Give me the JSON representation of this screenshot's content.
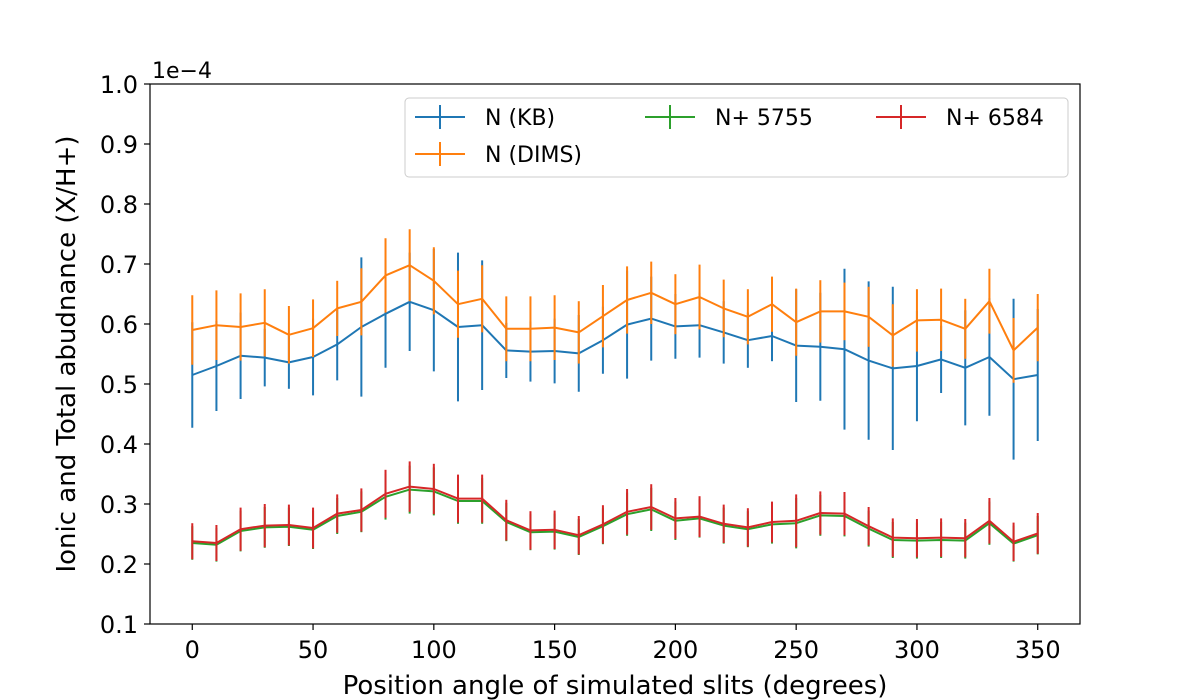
{
  "chart_data": {
    "type": "line",
    "title": "",
    "xlabel": "Position angle of simulated slits (degrees)",
    "ylabel": "Ionic and Total abudnance (X/H+)",
    "y_multiplier_label": "1e−4",
    "xlim": [
      -17.5,
      367.5
    ],
    "ylim": [
      0.1,
      1.0
    ],
    "xticks": [
      0,
      50,
      100,
      150,
      200,
      250,
      300,
      350
    ],
    "xtick_labels": [
      "0",
      "50",
      "100",
      "150",
      "200",
      "250",
      "300",
      "350"
    ],
    "yticks": [
      0.1,
      0.2,
      0.3,
      0.4,
      0.5,
      0.6,
      0.7,
      0.8,
      0.9,
      1.0
    ],
    "ytick_labels": [
      "0.1",
      "0.2",
      "0.3",
      "0.4",
      "0.5",
      "0.6",
      "0.7",
      "0.8",
      "0.9",
      "1.0"
    ],
    "grid": false,
    "legend_position": "top-right",
    "legend_columns": 3,
    "x": [
      0,
      10,
      20,
      30,
      40,
      50,
      60,
      70,
      80,
      90,
      100,
      110,
      120,
      130,
      140,
      150,
      160,
      170,
      180,
      190,
      200,
      210,
      220,
      230,
      240,
      250,
      260,
      270,
      280,
      290,
      300,
      310,
      320,
      330,
      340,
      350
    ],
    "series": [
      {
        "name": "N (KB)",
        "color": "#1f77b4",
        "values": [
          0.515,
          0.53,
          0.547,
          0.544,
          0.536,
          0.545,
          0.566,
          0.595,
          0.617,
          0.637,
          0.623,
          0.595,
          0.598,
          0.556,
          0.554,
          0.555,
          0.551,
          0.573,
          0.599,
          0.609,
          0.596,
          0.598,
          0.586,
          0.573,
          0.58,
          0.564,
          0.562,
          0.558,
          0.539,
          0.526,
          0.53,
          0.541,
          0.527,
          0.545,
          0.508,
          0.515
        ],
        "errors": [
          0.088,
          0.075,
          0.072,
          0.048,
          0.044,
          0.064,
          0.06,
          0.116,
          0.09,
          0.082,
          0.102,
          0.124,
          0.108,
          0.046,
          0.05,
          0.054,
          0.064,
          0.056,
          0.09,
          0.07,
          0.054,
          0.054,
          0.052,
          0.046,
          0.042,
          0.094,
          0.09,
          0.134,
          0.132,
          0.136,
          0.092,
          0.056,
          0.096,
          0.098,
          0.134,
          0.11
        ]
      },
      {
        "name": "N (DIMS)",
        "color": "#ff7f0e",
        "values": [
          0.59,
          0.598,
          0.595,
          0.602,
          0.582,
          0.593,
          0.626,
          0.637,
          0.681,
          0.698,
          0.672,
          0.633,
          0.642,
          0.592,
          0.592,
          0.594,
          0.586,
          0.613,
          0.64,
          0.652,
          0.633,
          0.645,
          0.626,
          0.612,
          0.633,
          0.603,
          0.621,
          0.621,
          0.612,
          0.581,
          0.606,
          0.607,
          0.592,
          0.638,
          0.556,
          0.594
        ],
        "errors": [
          0.058,
          0.058,
          0.056,
          0.056,
          0.048,
          0.048,
          0.046,
          0.056,
          0.062,
          0.06,
          0.056,
          0.056,
          0.056,
          0.054,
          0.054,
          0.054,
          0.052,
          0.052,
          0.056,
          0.052,
          0.05,
          0.054,
          0.048,
          0.046,
          0.046,
          0.056,
          0.052,
          0.048,
          0.05,
          0.052,
          0.052,
          0.052,
          0.05,
          0.054,
          0.054,
          0.056
        ]
      },
      {
        "name": "N+ 5755",
        "color": "#2ca02c",
        "values": [
          0.235,
          0.232,
          0.255,
          0.261,
          0.262,
          0.257,
          0.28,
          0.287,
          0.312,
          0.324,
          0.321,
          0.305,
          0.305,
          0.27,
          0.253,
          0.254,
          0.245,
          0.263,
          0.283,
          0.291,
          0.272,
          0.276,
          0.264,
          0.258,
          0.266,
          0.268,
          0.281,
          0.28,
          0.259,
          0.24,
          0.239,
          0.24,
          0.239,
          0.268,
          0.234,
          0.248
        ],
        "errors": [
          0.028,
          0.028,
          0.034,
          0.034,
          0.032,
          0.032,
          0.03,
          0.034,
          0.038,
          0.04,
          0.04,
          0.038,
          0.038,
          0.032,
          0.03,
          0.03,
          0.03,
          0.03,
          0.036,
          0.036,
          0.032,
          0.032,
          0.03,
          0.03,
          0.032,
          0.042,
          0.034,
          0.034,
          0.03,
          0.03,
          0.03,
          0.03,
          0.03,
          0.036,
          0.03,
          0.032
        ]
      },
      {
        "name": "N+ 6584",
        "color": "#d62728",
        "values": [
          0.238,
          0.235,
          0.258,
          0.264,
          0.265,
          0.26,
          0.284,
          0.29,
          0.317,
          0.329,
          0.325,
          0.309,
          0.309,
          0.273,
          0.256,
          0.257,
          0.248,
          0.266,
          0.287,
          0.295,
          0.276,
          0.279,
          0.267,
          0.261,
          0.27,
          0.272,
          0.285,
          0.284,
          0.263,
          0.244,
          0.243,
          0.244,
          0.243,
          0.272,
          0.237,
          0.251
        ],
        "errors": [
          0.03,
          0.03,
          0.036,
          0.036,
          0.034,
          0.034,
          0.032,
          0.036,
          0.04,
          0.042,
          0.042,
          0.04,
          0.04,
          0.034,
          0.032,
          0.032,
          0.032,
          0.032,
          0.038,
          0.038,
          0.034,
          0.034,
          0.032,
          0.032,
          0.034,
          0.044,
          0.036,
          0.036,
          0.032,
          0.032,
          0.032,
          0.032,
          0.032,
          0.038,
          0.032,
          0.034
        ]
      }
    ]
  }
}
